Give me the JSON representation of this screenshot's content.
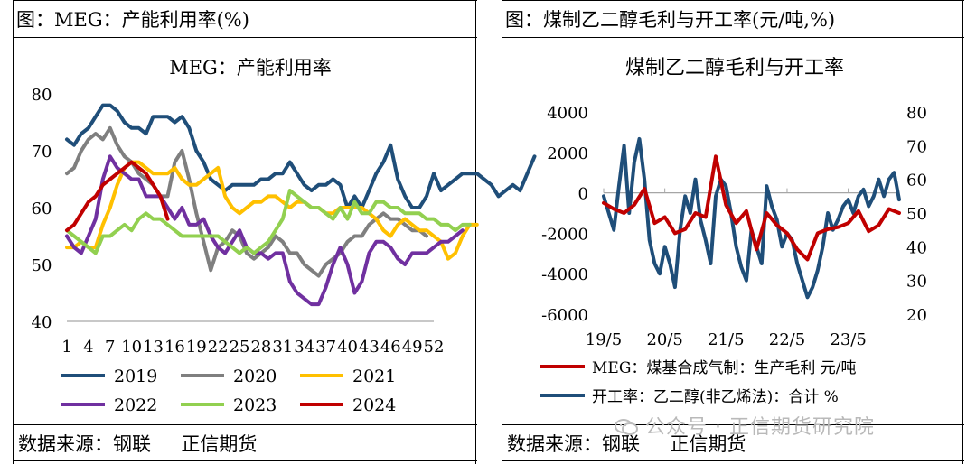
{
  "left_panel": {
    "title": "图：MEG：产能利用率(%)",
    "source": "数据来源：钢联     正信期货"
  },
  "right_panel": {
    "title": "图：煤制乙二醇毛利与开工率(元/吨,%)",
    "source": "数据来源：钢联     正信期货"
  },
  "watermark": "公众号 · 正信期货研究院",
  "chart_data": [
    {
      "type": "line",
      "title": "MEG：产能利用率",
      "x_tick_labels": [
        "1",
        "4",
        "7",
        "10",
        "13",
        "16",
        "19",
        "22",
        "25",
        "28",
        "31",
        "34",
        "37",
        "40",
        "43",
        "46",
        "49",
        "52"
      ],
      "ylim": [
        40,
        80
      ],
      "yticks": [
        40,
        50,
        60,
        70,
        80
      ],
      "grid": false,
      "legend_position": "bottom",
      "series": [
        {
          "name": "2019",
          "color": "#1f4e79",
          "values": [
            72,
            71,
            73,
            74,
            76,
            78,
            78,
            77,
            75,
            74,
            74,
            73,
            76,
            76,
            76,
            75,
            76,
            74,
            70,
            68,
            65,
            64,
            63,
            64,
            64,
            64,
            64,
            65,
            65,
            66,
            66,
            68,
            66,
            64,
            63,
            64,
            64,
            65,
            64,
            60,
            62,
            60,
            63,
            66,
            68,
            71,
            65,
            62,
            60,
            60,
            62,
            66,
            63,
            64,
            65,
            66,
            66,
            66,
            65,
            64,
            62,
            63,
            64,
            63,
            66,
            69
          ]
        },
        {
          "name": "2020",
          "color": "#7f7f7f",
          "values": [
            66,
            67,
            70,
            72,
            73,
            72,
            74,
            71,
            69,
            68,
            66,
            65,
            64,
            62,
            62,
            68,
            70,
            65,
            59,
            54,
            49,
            53,
            54,
            56,
            55,
            52,
            51,
            52,
            53,
            55,
            54,
            52,
            52,
            50,
            49,
            48,
            50,
            51,
            52,
            54,
            55,
            55,
            57,
            58,
            59,
            58,
            58,
            57,
            56,
            56,
            55
          ]
        },
        {
          "name": "2021",
          "color": "#ffc000",
          "values": [
            53,
            53,
            54,
            53,
            53,
            57,
            60,
            64,
            67,
            68,
            68,
            67,
            66,
            66,
            66,
            67,
            65,
            64,
            64,
            65,
            66,
            67,
            62,
            60,
            59,
            60,
            61,
            61,
            62,
            62,
            61,
            60,
            61,
            61,
            60,
            60,
            59,
            59,
            60,
            60,
            60,
            60,
            59,
            58,
            56,
            55,
            57,
            58,
            57,
            56,
            56,
            55,
            54,
            51,
            52,
            55,
            57,
            57
          ]
        },
        {
          "name": "2022",
          "color": "#7030a0",
          "values": [
            55,
            53,
            52,
            55,
            58,
            65,
            69,
            67,
            66,
            65,
            65,
            62,
            62,
            62,
            60,
            58,
            60,
            57,
            57,
            58,
            55,
            53,
            52,
            54,
            56,
            53,
            52,
            52,
            51,
            52,
            52,
            47,
            45,
            44,
            43,
            43,
            46,
            50,
            53,
            50,
            45,
            47,
            52,
            54,
            54,
            53,
            51,
            50,
            52,
            52,
            52,
            53,
            54,
            54,
            55,
            56
          ]
        },
        {
          "name": "2023",
          "color": "#92d050",
          "values": [
            56,
            55,
            54,
            53,
            52,
            55,
            55,
            56,
            57,
            56,
            58,
            59,
            58,
            58,
            57,
            56,
            55,
            55,
            55,
            55,
            55,
            55,
            54,
            53,
            52,
            53,
            52,
            53,
            54,
            56,
            58,
            63,
            62,
            61,
            60,
            60,
            59,
            58,
            60,
            58,
            61,
            59,
            59,
            61,
            61,
            60,
            60,
            59,
            59,
            59,
            58,
            58,
            57,
            57,
            56,
            57,
            57
          ]
        },
        {
          "name": "2024",
          "color": "#c00000",
          "values": [
            56,
            57,
            59,
            61,
            62,
            64,
            65,
            66,
            67,
            68,
            67,
            66,
            64,
            62,
            58
          ]
        }
      ]
    },
    {
      "type": "line",
      "title": "煤制乙二醇毛利与开工率",
      "x_tick_labels": [
        "19/5",
        "20/5",
        "21/5",
        "22/5",
        "23/5"
      ],
      "x_range": [
        "2019-05",
        "2024-03"
      ],
      "y_left": {
        "range": [
          -6000,
          4000
        ],
        "ticks": [
          -6000,
          -4000,
          -2000,
          0,
          2000,
          4000
        ]
      },
      "y_right": {
        "range": [
          20,
          80
        ],
        "ticks": [
          20,
          30,
          40,
          50,
          60,
          70,
          80
        ]
      },
      "grid": false,
      "legend_position": "bottom",
      "series": [
        {
          "name": "MEG：煤基合成气制：生产毛利 元/吨",
          "color": "#c00000",
          "axis": "left",
          "x": [
            "2019-05",
            "2019-07",
            "2019-09",
            "2019-11",
            "2020-01",
            "2020-03",
            "2020-05",
            "2020-07",
            "2020-09",
            "2020-11",
            "2021-01",
            "2021-03",
            "2021-05",
            "2021-07",
            "2021-09",
            "2021-11",
            "2022-01",
            "2022-03",
            "2022-05",
            "2022-07",
            "2022-09",
            "2022-11",
            "2023-01",
            "2023-03",
            "2023-05",
            "2023-07",
            "2023-09",
            "2023-11",
            "2024-01",
            "2024-03"
          ],
          "values": [
            -500,
            -800,
            -1000,
            -600,
            200,
            -1500,
            -1200,
            -2000,
            -1800,
            -1000,
            -1200,
            1800,
            -600,
            -1500,
            -900,
            -2800,
            -1000,
            -1600,
            -2000,
            -2800,
            -3300,
            -2000,
            -1800,
            -1700,
            -1500,
            -900,
            -1900,
            -1600,
            -800,
            -1000
          ]
        },
        {
          "name": "开工率：乙二醇(非乙烯法)：合计 %",
          "color": "#1f4e79",
          "axis": "right",
          "x": [
            "2019-05",
            "2019-07",
            "2019-08",
            "2019-09",
            "2019-10",
            "2019-11",
            "2019-12",
            "2020-01",
            "2020-02",
            "2020-03",
            "2020-04",
            "2020-05",
            "2020-06",
            "2020-07",
            "2020-08",
            "2020-09",
            "2020-10",
            "2020-11",
            "2020-12",
            "2021-01",
            "2021-02",
            "2021-03",
            "2021-04",
            "2021-05",
            "2021-06",
            "2021-07",
            "2021-08",
            "2021-09",
            "2021-10",
            "2021-11",
            "2021-12",
            "2022-01",
            "2022-02",
            "2022-03",
            "2022-04",
            "2022-05",
            "2022-06",
            "2022-07",
            "2022-08",
            "2022-09",
            "2022-10",
            "2022-11",
            "2022-12",
            "2023-01",
            "2023-02",
            "2023-03",
            "2023-04",
            "2023-05",
            "2023-06",
            "2023-07",
            "2023-08",
            "2023-09",
            "2023-10",
            "2023-11",
            "2023-12",
            "2024-01",
            "2024-02",
            "2024-03"
          ],
          "values": [
            55,
            45,
            58,
            70,
            50,
            65,
            72,
            60,
            42,
            35,
            32,
            40,
            35,
            28,
            45,
            55,
            50,
            60,
            48,
            42,
            35,
            55,
            60,
            58,
            50,
            40,
            34,
            30,
            45,
            40,
            35,
            58,
            52,
            48,
            40,
            44,
            42,
            35,
            30,
            25,
            28,
            33,
            40,
            50,
            45,
            48,
            52,
            54,
            50,
            55,
            57,
            52,
            55,
            60,
            55,
            60,
            62,
            54
          ]
        }
      ]
    }
  ]
}
